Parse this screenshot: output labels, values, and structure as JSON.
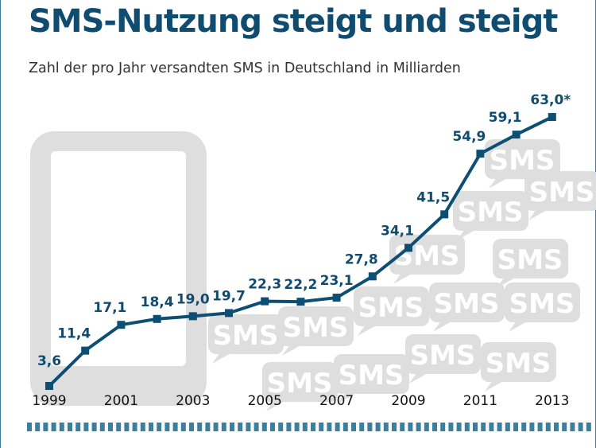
{
  "chart_data": {
    "type": "line",
    "title": "SMS-Nutzung steigt und steigt",
    "subtitle": "Zahl der pro Jahr versandten SMS in Deutschland in Milliarden",
    "x": [
      1999,
      2000,
      2001,
      2002,
      2003,
      2004,
      2005,
      2006,
      2007,
      2008,
      2009,
      2010,
      2011,
      2012,
      2013
    ],
    "values": [
      3.6,
      11.4,
      17.1,
      18.4,
      19.0,
      19.7,
      22.3,
      22.2,
      23.1,
      27.8,
      34.1,
      41.5,
      54.9,
      59.1,
      63.0
    ],
    "data_labels": [
      "3,6",
      "11,4",
      "17,1",
      "18,4",
      "19,0",
      "19,7",
      "22,3",
      "22,2",
      "23,1",
      "27,8",
      "34,1",
      "41,5",
      "54,9",
      "59,1",
      "63,0*"
    ],
    "x_tick_labels": [
      "1999",
      "2001",
      "2003",
      "2005",
      "2007",
      "2009",
      "2011",
      "2013"
    ],
    "background_text": "SMS",
    "grid": false,
    "colors": {
      "line": "#0d4f73",
      "title": "#0f4c6f",
      "background_graphic": "#dedede",
      "dashes": "#3a7fa0"
    }
  }
}
